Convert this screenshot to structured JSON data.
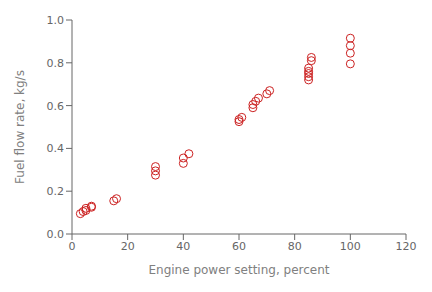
{
  "chart_data": {
    "type": "scatter",
    "xlabel": "Engine power setting, percent",
    "ylabel": "Fuel flow rate, kg/s",
    "x": [
      3,
      4,
      5,
      5,
      7,
      7,
      15,
      16,
      30,
      30,
      30,
      40,
      40,
      42,
      60,
      60,
      61,
      65,
      65,
      66,
      67,
      70,
      71,
      85,
      85,
      85,
      85,
      85,
      86,
      86,
      100,
      100,
      100,
      100
    ],
    "values": [
      0.095,
      0.105,
      0.11,
      0.12,
      0.125,
      0.13,
      0.155,
      0.165,
      0.275,
      0.295,
      0.315,
      0.33,
      0.355,
      0.375,
      0.525,
      0.535,
      0.545,
      0.59,
      0.605,
      0.62,
      0.635,
      0.655,
      0.67,
      0.72,
      0.735,
      0.75,
      0.76,
      0.775,
      0.81,
      0.825,
      0.795,
      0.845,
      0.88,
      0.915
    ],
    "color": "#cc2222",
    "marker": "circle",
    "xlim": [
      0,
      120
    ],
    "ylim": [
      0.0,
      1.0
    ],
    "xticks": [
      0,
      20,
      40,
      60,
      80,
      100,
      120
    ],
    "yticks": [
      {
        "value": 0,
        "label": "0.0"
      },
      0.2,
      0.4,
      0.6,
      0.8,
      {
        "value": 1,
        "label": "1.0"
      }
    ],
    "grid": false
  }
}
